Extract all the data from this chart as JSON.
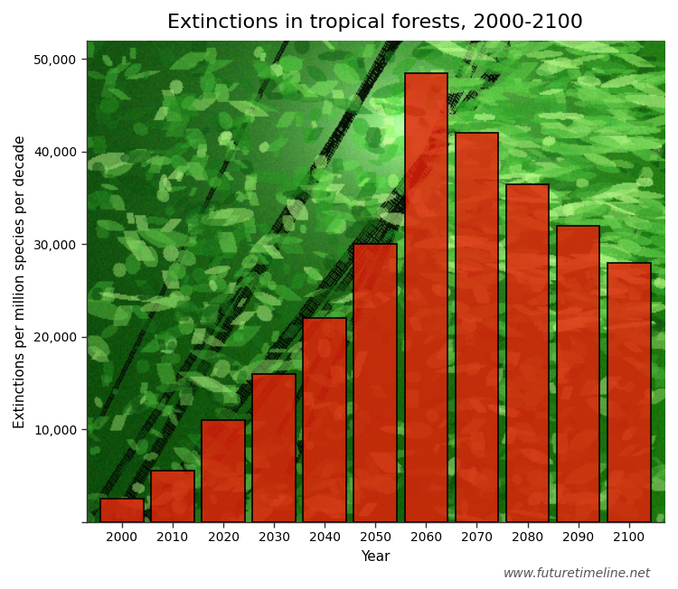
{
  "title": "Extinctions in tropical forests, 2000-2100",
  "xlabel": "Year",
  "ylabel": "Extinctions per million species per decade",
  "watermark": "www.futuretimeline.net",
  "years": [
    2000,
    2010,
    2020,
    2030,
    2040,
    2050,
    2060,
    2070,
    2080,
    2090,
    2100
  ],
  "values": [
    2500,
    5500,
    11000,
    16000,
    22000,
    30000,
    48500,
    42000,
    36500,
    32000,
    28000
  ],
  "bar_color": "#E8200A",
  "bar_alpha": 0.82,
  "bar_edge_color": "#000000",
  "bar_edge_width": 1.4,
  "bar_width": 8.5,
  "xlim": [
    1993,
    2107
  ],
  "ylim": [
    0,
    52000
  ],
  "yticks": [
    0,
    10000,
    20000,
    30000,
    40000,
    50000
  ],
  "title_fontsize": 16,
  "axis_label_fontsize": 11,
  "tick_fontsize": 10,
  "watermark_fontsize": 10,
  "watermark_color": "#555555",
  "background_color": "#ffffff",
  "fig_width": 7.5,
  "fig_height": 6.52,
  "dpi": 100
}
